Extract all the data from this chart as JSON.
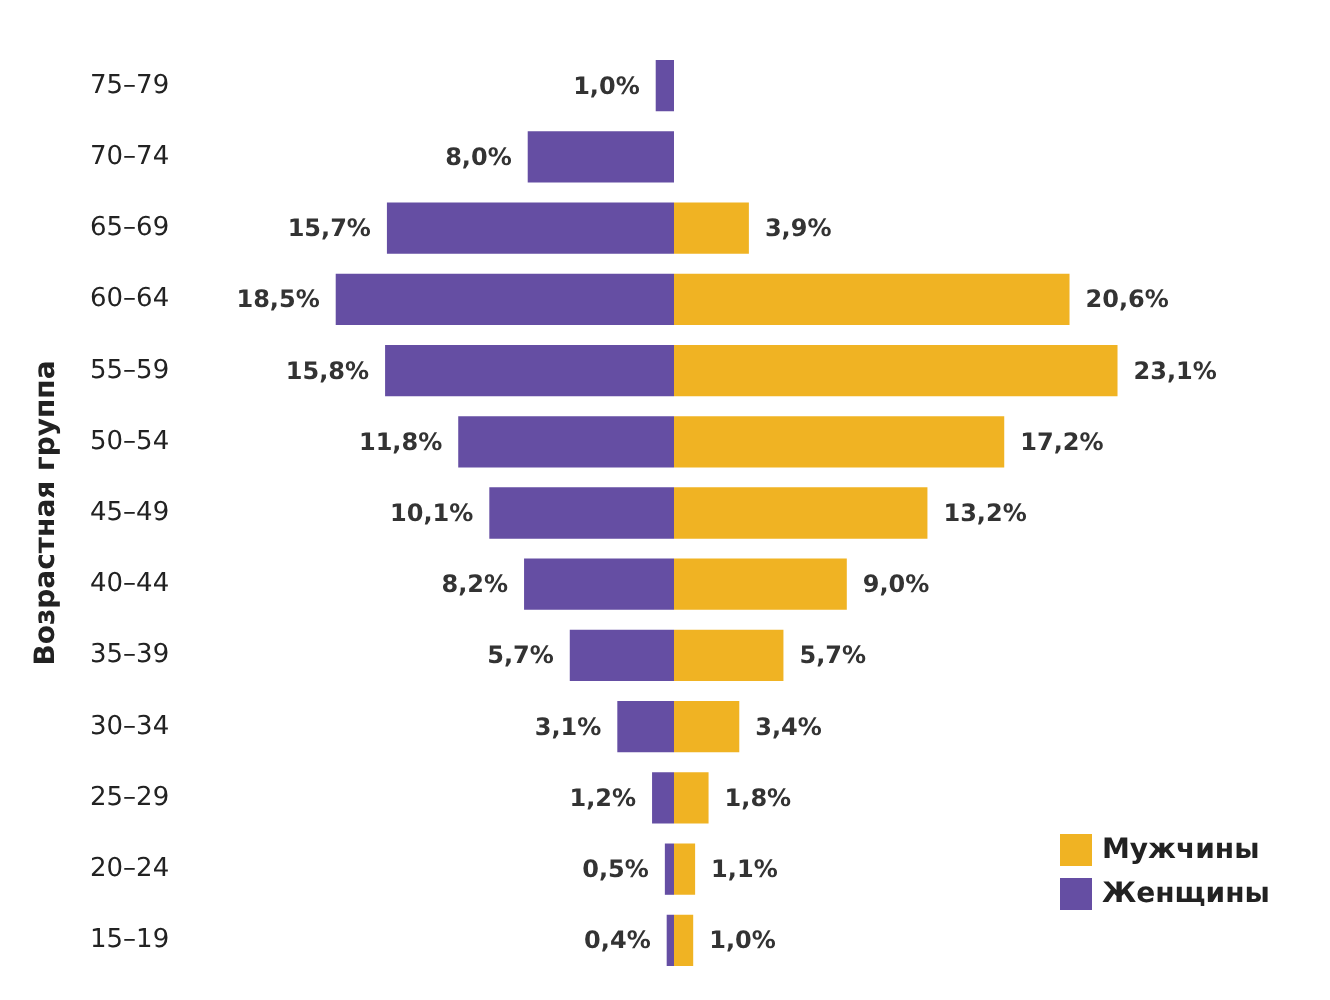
{
  "chart_data": [
    {
      "type": "bar",
      "orientation": "horizontal",
      "ylabel": "Возрастная группа",
      "legend": "bottom right",
      "tick_labels": "y",
      "categories": [
        "75–79",
        "70–74",
        "65–69",
        "60–64",
        "55–59",
        "50–54",
        "45–49",
        "40–44",
        "35–39",
        "30–34",
        "25–29",
        "20–24",
        "15–19"
      ],
      "series": [
        {
          "name": "Женщины",
          "color": "#654ea3",
          "values": [
            1.0,
            8.0,
            15.7,
            18.5,
            15.8,
            11.8,
            10.1,
            8.2,
            5.7,
            3.1,
            1.2,
            0.5,
            0.4
          ],
          "value_labels": [
            "1,0%",
            "8,0%",
            "15,7%",
            "18,5%",
            "15,8%",
            "11,8%",
            "10,1%",
            "8,2%",
            "5,7%",
            "3,1%",
            "1,2%",
            "0,5%",
            "0,4%"
          ]
        }
      ]
    },
    {
      "type": "bar",
      "orientation": "horizontal",
      "legend": "bottom right",
      "tick_labels": false,
      "categories": [
        "75–79",
        "70–74",
        "65–69",
        "60–64",
        "55–59",
        "50–54",
        "45–49",
        "40–44",
        "35–39",
        "30–34",
        "25–29",
        "20–24",
        "15–19"
      ],
      "series": [
        {
          "name": "Мужчины",
          "color": "#f0b323",
          "values": [
            null,
            null,
            3.9,
            20.6,
            23.1,
            17.2,
            13.2,
            9.0,
            5.7,
            3.4,
            1.8,
            1.1,
            1.0
          ],
          "value_labels": [
            null,
            null,
            "3,9%",
            "20,6%",
            "23,1%",
            "17,2%",
            "13,2%",
            "9,0%",
            "5,7%",
            "3,4%",
            "1,8%",
            "1,1%",
            "1,0%"
          ]
        }
      ]
    }
  ]
}
